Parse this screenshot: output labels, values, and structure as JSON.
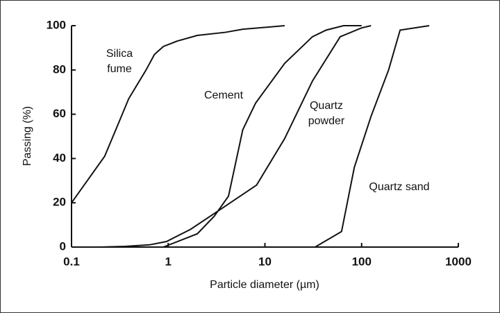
{
  "chart_data": {
    "type": "line",
    "x_label": "Particle diameter (µm)",
    "y_label": "Passing (%)",
    "xscale": "log",
    "xlim": [
      0.1,
      1000
    ],
    "xticks": [
      0.1,
      1,
      10,
      100,
      1000
    ],
    "ylim": [
      0,
      100
    ],
    "yticks": [
      0,
      20,
      40,
      60,
      80,
      100
    ],
    "grid": false,
    "series": [
      {
        "name": "Silica\nfume",
        "color": "#111111",
        "x": [
          0.1,
          0.22,
          0.3,
          0.39,
          0.59,
          0.72,
          0.89,
          1.23,
          2.0,
          3.9,
          5.9,
          16
        ],
        "values": [
          20,
          41,
          55,
          67,
          80,
          87,
          90.6,
          93,
          95.6,
          97,
          98.4,
          100
        ]
      },
      {
        "name": "Cement",
        "color": "#111111",
        "x": [
          0.89,
          2.0,
          3.0,
          4.2,
          5.9,
          8,
          16,
          31,
          43,
          65,
          100
        ],
        "values": [
          0,
          6,
          14,
          23,
          53,
          65,
          83,
          95,
          98,
          100,
          100
        ]
      },
      {
        "name": "Quartz\npowder",
        "color": "#111111",
        "x": [
          0.2,
          0.36,
          0.64,
          0.96,
          1.7,
          3.6,
          8.2,
          16,
          31,
          60,
          100,
          125
        ],
        "values": [
          0,
          0.3,
          1,
          2.5,
          8,
          17.5,
          28,
          49,
          75,
          95,
          99,
          100
        ]
      },
      {
        "name": "Quartz sand",
        "color": "#111111",
        "x": [
          33,
          62,
          84,
          125,
          190,
          250,
          500
        ],
        "values": [
          0,
          7,
          36,
          59,
          80,
          98,
          100
        ]
      }
    ]
  }
}
